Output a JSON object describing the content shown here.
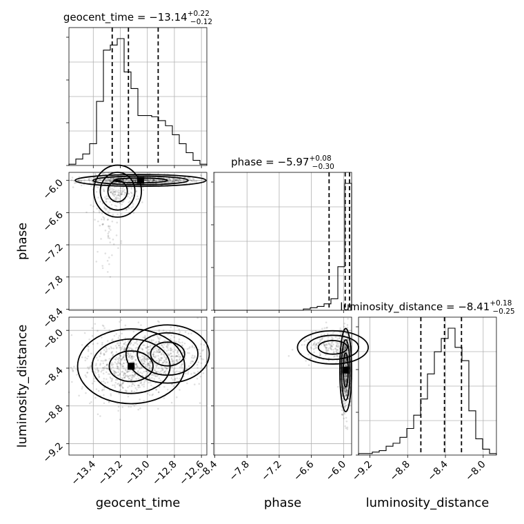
{
  "chart_data": {
    "type": "corner",
    "parameters": [
      "geocent_time",
      "phase",
      "luminosity_distance"
    ],
    "axis_labels": {
      "geocent_time": "geocent_time",
      "phase": "phase",
      "luminosity_distance": "luminosity_distance"
    },
    "ranges": {
      "geocent_time": [
        -13.58,
        -12.56
      ],
      "phase": [
        -8.42,
        -5.85
      ],
      "luminosity_distance": [
        -9.32,
        -7.86
      ]
    },
    "tick_values": {
      "geocent_time": [
        -13.4,
        -13.2,
        -13.0,
        -12.8,
        -12.6
      ],
      "phase": [
        -8.4,
        -7.8,
        -7.2,
        -6.6,
        -6.0
      ],
      "luminosity_distance": [
        -9.2,
        -8.8,
        -8.4,
        -8.0
      ]
    },
    "tick_labels": {
      "geocent_time": [
        "−13.4",
        "−13.2",
        "−13.0",
        "−12.8",
        "−12.6"
      ],
      "phase": [
        "−8.4",
        "−7.8",
        "−7.2",
        "−6.6",
        "−6.0"
      ],
      "luminosity_distance": [
        "−9.2",
        "−8.8",
        "−8.4",
        "−8.0"
      ]
    },
    "titles": [
      {
        "param": "geocent_time",
        "text": "geocent_time = −13.14",
        "sup": "+0.22",
        "sub": "−0.12"
      },
      {
        "param": "phase",
        "text": "phase = −5.97",
        "sup": "+0.08",
        "sub": "−0.30"
      },
      {
        "param": "luminosity_distance",
        "text": "luminosity_distance = −8.41",
        "sup": "+0.18",
        "sub": "−0.25"
      }
    ],
    "quantiles": {
      "geocent_time": [
        -13.26,
        -13.14,
        -12.92
      ],
      "phase": [
        -6.27,
        -5.97,
        -5.89
      ],
      "luminosity_distance": [
        -8.66,
        -8.41,
        -8.23
      ]
    },
    "histograms": {
      "geocent_time": {
        "bins": 20,
        "counts": [
          1,
          5,
          9,
          17,
          50,
          90,
          94,
          99,
          73,
          60,
          39,
          39,
          38,
          35,
          31,
          24,
          17,
          10,
          4,
          1
        ]
      },
      "phase": {
        "bins": 20,
        "counts": [
          0,
          0,
          0,
          0,
          0,
          0,
          0,
          0,
          0,
          0,
          0,
          0,
          0,
          1,
          2,
          3,
          5,
          9,
          34,
          99
        ]
      },
      "luminosity_distance": {
        "bins": 20,
        "counts": [
          1,
          1,
          2,
          3,
          6,
          8,
          12,
          18,
          27,
          38,
          55,
          70,
          79,
          86,
          73,
          64,
          30,
          11,
          4,
          1
        ]
      }
    },
    "samples_2d": [
      {
        "x": "geocent_time",
        "y": "phase",
        "clusters": [
          {
            "mx": -13.05,
            "my": -6.0,
            "sx": 0.22,
            "sy": 0.05,
            "n": 700
          },
          {
            "mx": -13.22,
            "my": -6.2,
            "sx": 0.08,
            "sy": 0.22,
            "n": 220
          },
          {
            "mx": -13.3,
            "my": -6.75,
            "sx": 0.05,
            "sy": 0.4,
            "n": 80
          }
        ]
      },
      {
        "x": "geocent_time",
        "y": "luminosity_distance",
        "clusters": [
          {
            "mx": -13.12,
            "my": -8.38,
            "sx": 0.18,
            "sy": 0.18,
            "n": 800
          },
          {
            "mx": -12.85,
            "my": -8.25,
            "sx": 0.14,
            "sy": 0.14,
            "n": 300
          }
        ]
      },
      {
        "x": "phase",
        "y": "luminosity_distance",
        "clusters": [
          {
            "mx": -5.96,
            "my": -8.42,
            "sx": 0.05,
            "sy": 0.2,
            "n": 700
          },
          {
            "mx": -6.2,
            "my": -8.18,
            "sx": 0.3,
            "sy": 0.08,
            "n": 250
          }
        ]
      }
    ],
    "grid": true
  }
}
